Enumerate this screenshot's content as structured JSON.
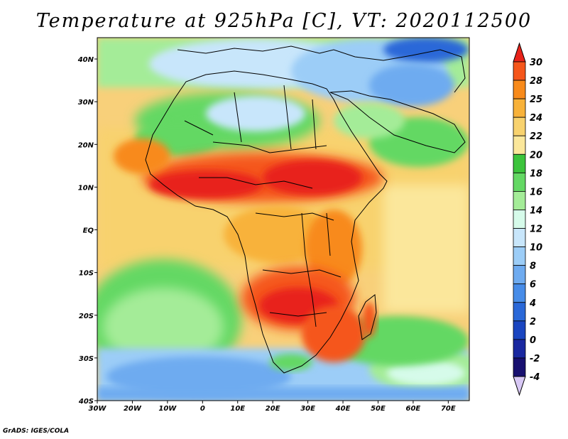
{
  "title": "Temperature at 925hPa [C], VT: 2020112500",
  "credit": "GrADS: IGES/COLA",
  "map": {
    "lon_range": [
      -30,
      76
    ],
    "lat_range": [
      -40,
      45
    ],
    "lon_ticks": [
      "30W",
      "20W",
      "10W",
      "0",
      "10E",
      "20E",
      "30E",
      "40E",
      "50E",
      "60E",
      "70E"
    ],
    "lat_ticks": [
      "40N",
      "30N",
      "20N",
      "10N",
      "EQ",
      "10S",
      "20S",
      "30S",
      "40S"
    ]
  },
  "colorbar": {
    "levels": [
      "30",
      "28",
      "25",
      "24",
      "22",
      "20",
      "18",
      "16",
      "14",
      "12",
      "10",
      "8",
      "6",
      "4",
      "2",
      "0",
      "-2",
      "-4"
    ],
    "colors": [
      "#e8231a",
      "#f5561a",
      "#f88a1a",
      "#f8b23a",
      "#f8d26e",
      "#fbe79b",
      "#3cc43c",
      "#64d864",
      "#a4ec98",
      "#d6fbea",
      "#c8e6fb",
      "#9ccdf7",
      "#6eabf0",
      "#478ce8",
      "#2a68d8",
      "#1a45c0",
      "#1a28a0",
      "#181070",
      "#d8c8f5"
    ]
  },
  "icons": {
    "colorbar-top": "triangle-up",
    "colorbar-bottom": "triangle-down"
  }
}
